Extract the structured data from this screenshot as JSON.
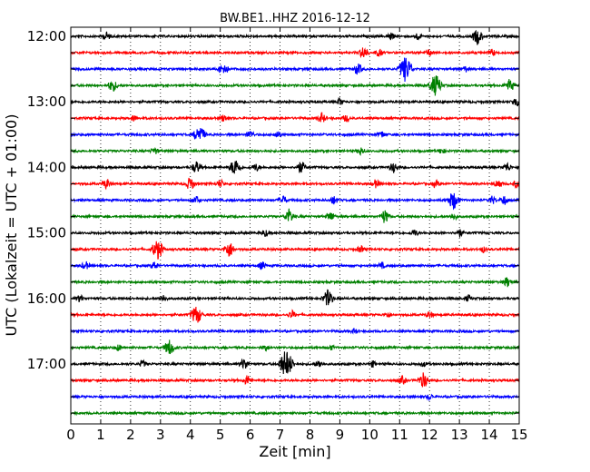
{
  "chart_data": {
    "type": "line",
    "title": "BW.BE1..HHZ 2016-12-12",
    "xlabel": "Zeit  [min]",
    "ylabel": "UTC (Lokalzeit = UTC + 01:00)",
    "xlim": [
      0,
      15
    ],
    "x_ticks": [
      "0",
      "1",
      "2",
      "3",
      "4",
      "5",
      "6",
      "7",
      "8",
      "9",
      "10",
      "11",
      "12",
      "13",
      "14",
      "15"
    ],
    "y_hour_labels": [
      "12:00",
      "13:00",
      "14:00",
      "15:00",
      "16:00",
      "17:00"
    ],
    "trace_interval_min": 15,
    "trace_colors": [
      "#000000",
      "#ff0000",
      "#0000ff",
      "#008000"
    ],
    "traces": [
      {
        "start": "12:00",
        "events": [
          [
            1.2,
            0.35
          ],
          [
            10.7,
            0.3
          ],
          [
            11.6,
            0.3
          ],
          [
            13.6,
            0.7
          ]
        ]
      },
      {
        "start": "12:15",
        "events": [
          [
            9.8,
            0.55
          ],
          [
            10.3,
            0.35
          ],
          [
            12.0,
            0.3
          ],
          [
            14.1,
            0.3
          ]
        ]
      },
      {
        "start": "12:30",
        "events": [
          [
            5.1,
            0.6
          ],
          [
            9.6,
            0.5
          ],
          [
            11.2,
            1.2
          ],
          [
            13.2,
            0.25
          ]
        ]
      },
      {
        "start": "12:45",
        "events": [
          [
            1.4,
            0.55
          ],
          [
            12.2,
            1.0
          ],
          [
            14.7,
            0.6
          ]
        ]
      },
      {
        "start": "13:00",
        "events": [
          [
            9.0,
            0.3
          ],
          [
            14.9,
            0.45
          ]
        ]
      },
      {
        "start": "13:15",
        "events": [
          [
            2.1,
            0.25
          ],
          [
            5.1,
            0.3
          ],
          [
            8.4,
            0.45
          ],
          [
            9.2,
            0.3
          ]
        ]
      },
      {
        "start": "13:30",
        "events": [
          [
            4.3,
            0.85
          ],
          [
            6.0,
            0.35
          ],
          [
            6.9,
            0.3
          ],
          [
            10.4,
            0.3
          ]
        ]
      },
      {
        "start": "13:45",
        "events": [
          [
            2.8,
            0.3
          ],
          [
            9.7,
            0.35
          ],
          [
            12.4,
            0.25
          ]
        ]
      },
      {
        "start": "14:00",
        "events": [
          [
            4.2,
            0.55
          ],
          [
            5.5,
            0.8
          ],
          [
            6.2,
            0.35
          ],
          [
            7.7,
            0.55
          ],
          [
            10.8,
            0.45
          ],
          [
            14.6,
            0.4
          ]
        ]
      },
      {
        "start": "14:15",
        "events": [
          [
            1.2,
            0.45
          ],
          [
            4.0,
            0.6
          ],
          [
            5.0,
            0.35
          ],
          [
            10.2,
            0.35
          ],
          [
            12.2,
            0.3
          ],
          [
            14.3,
            0.4
          ],
          [
            14.9,
            0.3
          ]
        ]
      },
      {
        "start": "14:30",
        "events": [
          [
            4.2,
            0.35
          ],
          [
            7.1,
            0.4
          ],
          [
            8.8,
            0.35
          ],
          [
            12.8,
            0.85
          ],
          [
            14.1,
            0.35
          ],
          [
            14.5,
            0.4
          ]
        ]
      },
      {
        "start": "14:45",
        "events": [
          [
            7.3,
            0.65
          ],
          [
            8.7,
            0.4
          ],
          [
            10.5,
            0.6
          ],
          [
            12.8,
            0.3
          ]
        ]
      },
      {
        "start": "15:00",
        "events": [
          [
            6.5,
            0.3
          ],
          [
            11.5,
            0.3
          ],
          [
            13.0,
            0.35
          ]
        ]
      },
      {
        "start": "15:15",
        "events": [
          [
            2.9,
            0.9
          ],
          [
            5.3,
            0.7
          ],
          [
            9.7,
            0.3
          ],
          [
            13.8,
            0.25
          ]
        ]
      },
      {
        "start": "15:30",
        "events": [
          [
            0.5,
            0.35
          ],
          [
            2.8,
            0.35
          ],
          [
            6.4,
            0.35
          ],
          [
            10.4,
            0.25
          ]
        ]
      },
      {
        "start": "15:45",
        "events": [
          [
            14.6,
            0.45
          ]
        ]
      },
      {
        "start": "16:00",
        "events": [
          [
            0.3,
            0.3
          ],
          [
            3.1,
            0.3
          ],
          [
            8.6,
            0.75
          ],
          [
            13.3,
            0.3
          ]
        ]
      },
      {
        "start": "16:15",
        "events": [
          [
            4.2,
            0.85
          ],
          [
            7.4,
            0.35
          ],
          [
            10.6,
            0.25
          ],
          [
            12.0,
            0.3
          ]
        ]
      },
      {
        "start": "16:30",
        "events": [
          [
            9.5,
            0.2
          ]
        ]
      },
      {
        "start": "16:45",
        "events": [
          [
            1.6,
            0.3
          ],
          [
            3.3,
            0.7
          ],
          [
            6.5,
            0.25
          ],
          [
            8.7,
            0.2
          ]
        ]
      },
      {
        "start": "17:00",
        "events": [
          [
            2.4,
            0.3
          ],
          [
            5.8,
            0.5
          ],
          [
            7.2,
            1.3
          ],
          [
            8.3,
            0.3
          ],
          [
            10.1,
            0.25
          ],
          [
            11.8,
            0.2
          ]
        ]
      },
      {
        "start": "17:15",
        "events": [
          [
            5.9,
            0.45
          ],
          [
            11.1,
            0.35
          ],
          [
            11.8,
            0.7
          ]
        ]
      },
      {
        "start": "17:30",
        "events": [
          [
            12.0,
            0.25
          ]
        ]
      },
      {
        "start": "17:45",
        "events": []
      }
    ]
  }
}
